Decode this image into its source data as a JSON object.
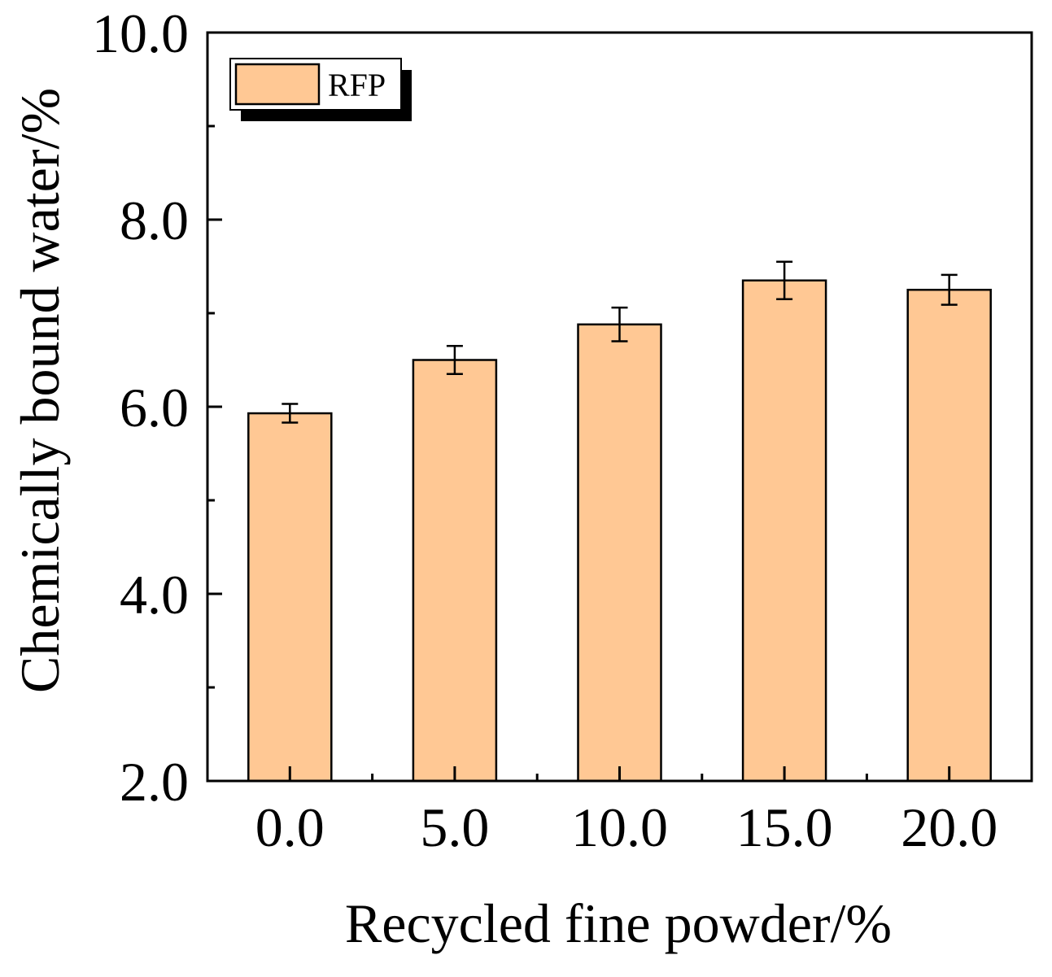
{
  "chart_data": {
    "type": "bar",
    "categories": [
      "0.0",
      "5.0",
      "10.0",
      "15.0",
      "20.0"
    ],
    "series": [
      {
        "name": "RFP",
        "values": [
          5.93,
          6.5,
          6.88,
          7.35,
          7.25
        ],
        "errors": [
          0.1,
          0.15,
          0.18,
          0.2,
          0.16
        ],
        "color": "#FFC894"
      }
    ],
    "xlabel": "Recycled fine powder/%",
    "ylabel": "Chemically bound water/%",
    "ylim": [
      2.0,
      10.0
    ],
    "yticks": [
      "2.0",
      "4.0",
      "6.0",
      "8.0",
      "10.0"
    ],
    "grid": false,
    "legend_position": "top-left"
  }
}
